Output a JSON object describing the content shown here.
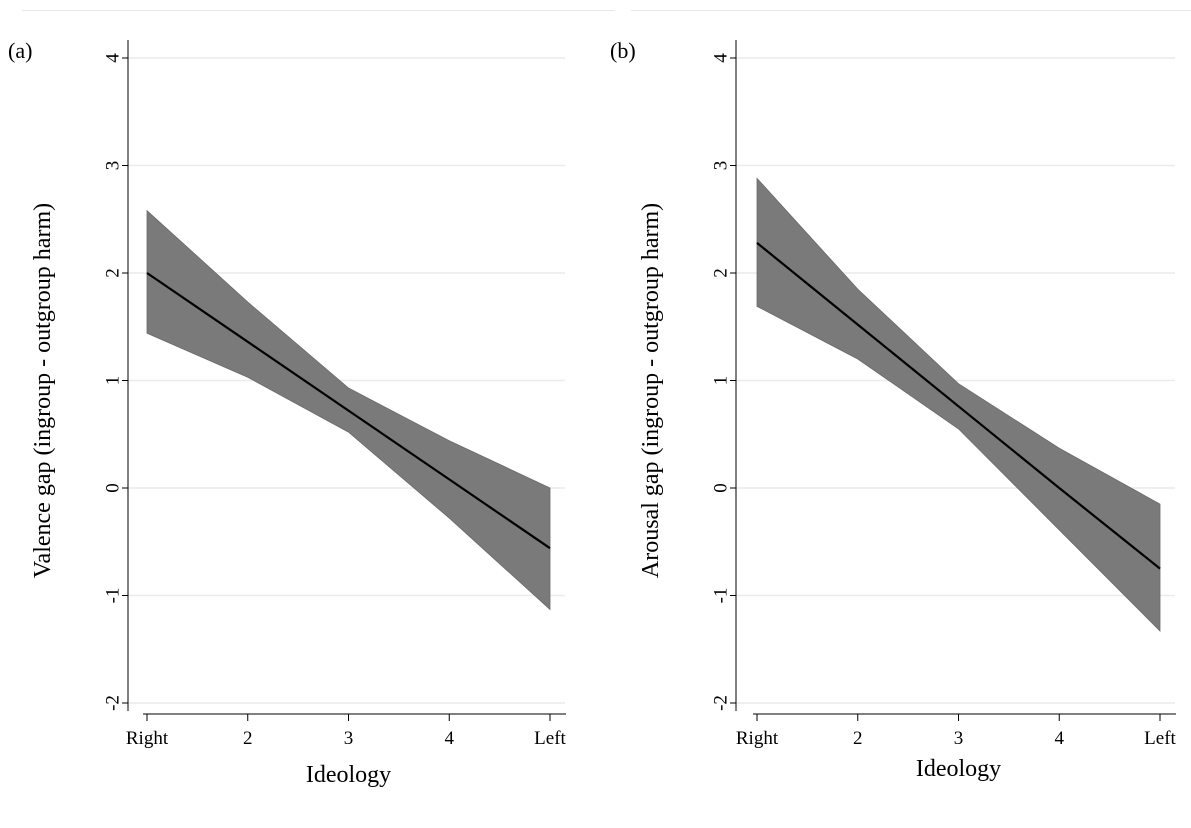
{
  "chart_data": [
    {
      "type": "line",
      "panel_label": "(a)",
      "xlabel": "Ideology",
      "ylabel": "Valence gap (ingroup - outgroup harm)",
      "x": [
        1,
        2,
        3,
        4,
        5
      ],
      "x_tick_labels": [
        "Right",
        "2",
        "3",
        "4",
        "Left"
      ],
      "xlim": [
        1,
        5
      ],
      "ylim": [
        -2,
        4
      ],
      "y_ticks": [
        -2,
        -1,
        0,
        1,
        2,
        3,
        4
      ],
      "y_tick_labels": [
        "-2",
        "-1",
        "0",
        "1",
        "2",
        "3",
        "4"
      ],
      "grid": "horizontal",
      "series": [
        {
          "estimate": [
            2.0,
            1.36,
            0.72,
            0.08,
            -0.56
          ],
          "ci_upper": [
            2.58,
            1.73,
            0.93,
            0.44,
            0.0
          ],
          "ci_lower": [
            1.44,
            1.03,
            0.52,
            -0.28,
            -1.13
          ]
        }
      ],
      "colors": {
        "line": "#000000",
        "band": "#7a7a7a",
        "grid": "#e6ecef"
      }
    },
    {
      "type": "line",
      "panel_label": "(b)",
      "xlabel": "Ideology",
      "ylabel": "Arousal gap (ingroup - outgroup harm)",
      "x": [
        1,
        2,
        3,
        4,
        5
      ],
      "x_tick_labels": [
        "Right",
        "2",
        "3",
        "4",
        "Left"
      ],
      "xlim": [
        1,
        5
      ],
      "ylim": [
        -2,
        4
      ],
      "y_ticks": [
        -2,
        -1,
        0,
        1,
        2,
        3,
        4
      ],
      "y_tick_labels": [
        "-2",
        "-1",
        "0",
        "1",
        "2",
        "3",
        "4"
      ],
      "grid": "horizontal",
      "series": [
        {
          "estimate": [
            2.28,
            1.52,
            0.76,
            0.0,
            -0.75
          ],
          "ci_upper": [
            2.88,
            1.85,
            0.97,
            0.37,
            -0.15
          ],
          "ci_lower": [
            1.69,
            1.2,
            0.55,
            -0.39,
            -1.33
          ]
        }
      ],
      "colors": {
        "line": "#000000",
        "band": "#7a7a7a",
        "grid": "#e6ecef"
      }
    }
  ]
}
